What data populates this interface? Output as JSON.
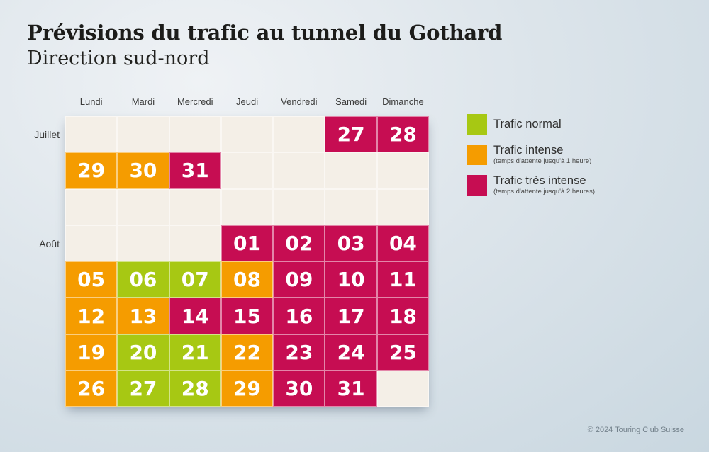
{
  "chart_data": {
    "type": "heatmap",
    "title": "Prévisions du trafic au tunnel du Gothard",
    "subtitle": "Direction sud-nord",
    "columns": [
      "Lundi",
      "Mardi",
      "Mercredi",
      "Jeudi",
      "Vendredi",
      "Samedi",
      "Dimanche"
    ],
    "row_labels": [
      {
        "label": "Juillet",
        "week": 0
      },
      {
        "label": "Août",
        "week": 3
      }
    ],
    "weeks": [
      [
        {
          "date": "",
          "level": "none"
        },
        {
          "date": "",
          "level": "none"
        },
        {
          "date": "",
          "level": "none"
        },
        {
          "date": "",
          "level": "none"
        },
        {
          "date": "",
          "level": "none"
        },
        {
          "date": "27",
          "level": "very_intense"
        },
        {
          "date": "28",
          "level": "very_intense"
        }
      ],
      [
        {
          "date": "29",
          "level": "intense"
        },
        {
          "date": "30",
          "level": "intense"
        },
        {
          "date": "31",
          "level": "very_intense"
        },
        {
          "date": "",
          "level": "none"
        },
        {
          "date": "",
          "level": "none"
        },
        {
          "date": "",
          "level": "none"
        },
        {
          "date": "",
          "level": "none"
        }
      ],
      [
        {
          "date": "",
          "level": "none"
        },
        {
          "date": "",
          "level": "none"
        },
        {
          "date": "",
          "level": "none"
        },
        {
          "date": "",
          "level": "none"
        },
        {
          "date": "",
          "level": "none"
        },
        {
          "date": "",
          "level": "none"
        },
        {
          "date": "",
          "level": "none"
        }
      ],
      [
        {
          "date": "",
          "level": "none"
        },
        {
          "date": "",
          "level": "none"
        },
        {
          "date": "",
          "level": "none"
        },
        {
          "date": "01",
          "level": "very_intense"
        },
        {
          "date": "02",
          "level": "very_intense"
        },
        {
          "date": "03",
          "level": "very_intense"
        },
        {
          "date": "04",
          "level": "very_intense"
        }
      ],
      [
        {
          "date": "05",
          "level": "intense"
        },
        {
          "date": "06",
          "level": "normal"
        },
        {
          "date": "07",
          "level": "normal"
        },
        {
          "date": "08",
          "level": "intense"
        },
        {
          "date": "09",
          "level": "very_intense"
        },
        {
          "date": "10",
          "level": "very_intense"
        },
        {
          "date": "11",
          "level": "very_intense"
        }
      ],
      [
        {
          "date": "12",
          "level": "intense"
        },
        {
          "date": "13",
          "level": "intense"
        },
        {
          "date": "14",
          "level": "very_intense"
        },
        {
          "date": "15",
          "level": "very_intense"
        },
        {
          "date": "16",
          "level": "very_intense"
        },
        {
          "date": "17",
          "level": "very_intense"
        },
        {
          "date": "18",
          "level": "very_intense"
        }
      ],
      [
        {
          "date": "19",
          "level": "intense"
        },
        {
          "date": "20",
          "level": "normal"
        },
        {
          "date": "21",
          "level": "normal"
        },
        {
          "date": "22",
          "level": "intense"
        },
        {
          "date": "23",
          "level": "very_intense"
        },
        {
          "date": "24",
          "level": "very_intense"
        },
        {
          "date": "25",
          "level": "very_intense"
        }
      ],
      [
        {
          "date": "26",
          "level": "intense"
        },
        {
          "date": "27",
          "level": "normal"
        },
        {
          "date": "28",
          "level": "normal"
        },
        {
          "date": "29",
          "level": "intense"
        },
        {
          "date": "30",
          "level": "very_intense"
        },
        {
          "date": "31",
          "level": "very_intense"
        },
        {
          "date": "",
          "level": "none"
        }
      ]
    ],
    "legend": [
      {
        "label": "Trafic normal",
        "sublabel": "",
        "level": "normal"
      },
      {
        "label": "Trafic intense",
        "sublabel": "(temps d'attente jusqu'à 1 heure)",
        "level": "intense"
      },
      {
        "label": "Trafic très intense",
        "sublabel": "(temps d'attente jusqu'à 2 heures)",
        "level": "very_intense"
      }
    ],
    "layout": {
      "grid_on": false,
      "legend_position": "right"
    }
  },
  "footer": {
    "copyright": "© 2024 Touring Club Suisse"
  },
  "colors": {
    "normal": "#a7c813",
    "intense": "#f59c00",
    "very_intense": "#c60d52",
    "empty_cell": "#f4efe7",
    "background_top": "#eff2f5",
    "background_bottom": "#c9d7e0",
    "title_text": "#1c1c1a",
    "footer_text": "#74828c"
  }
}
